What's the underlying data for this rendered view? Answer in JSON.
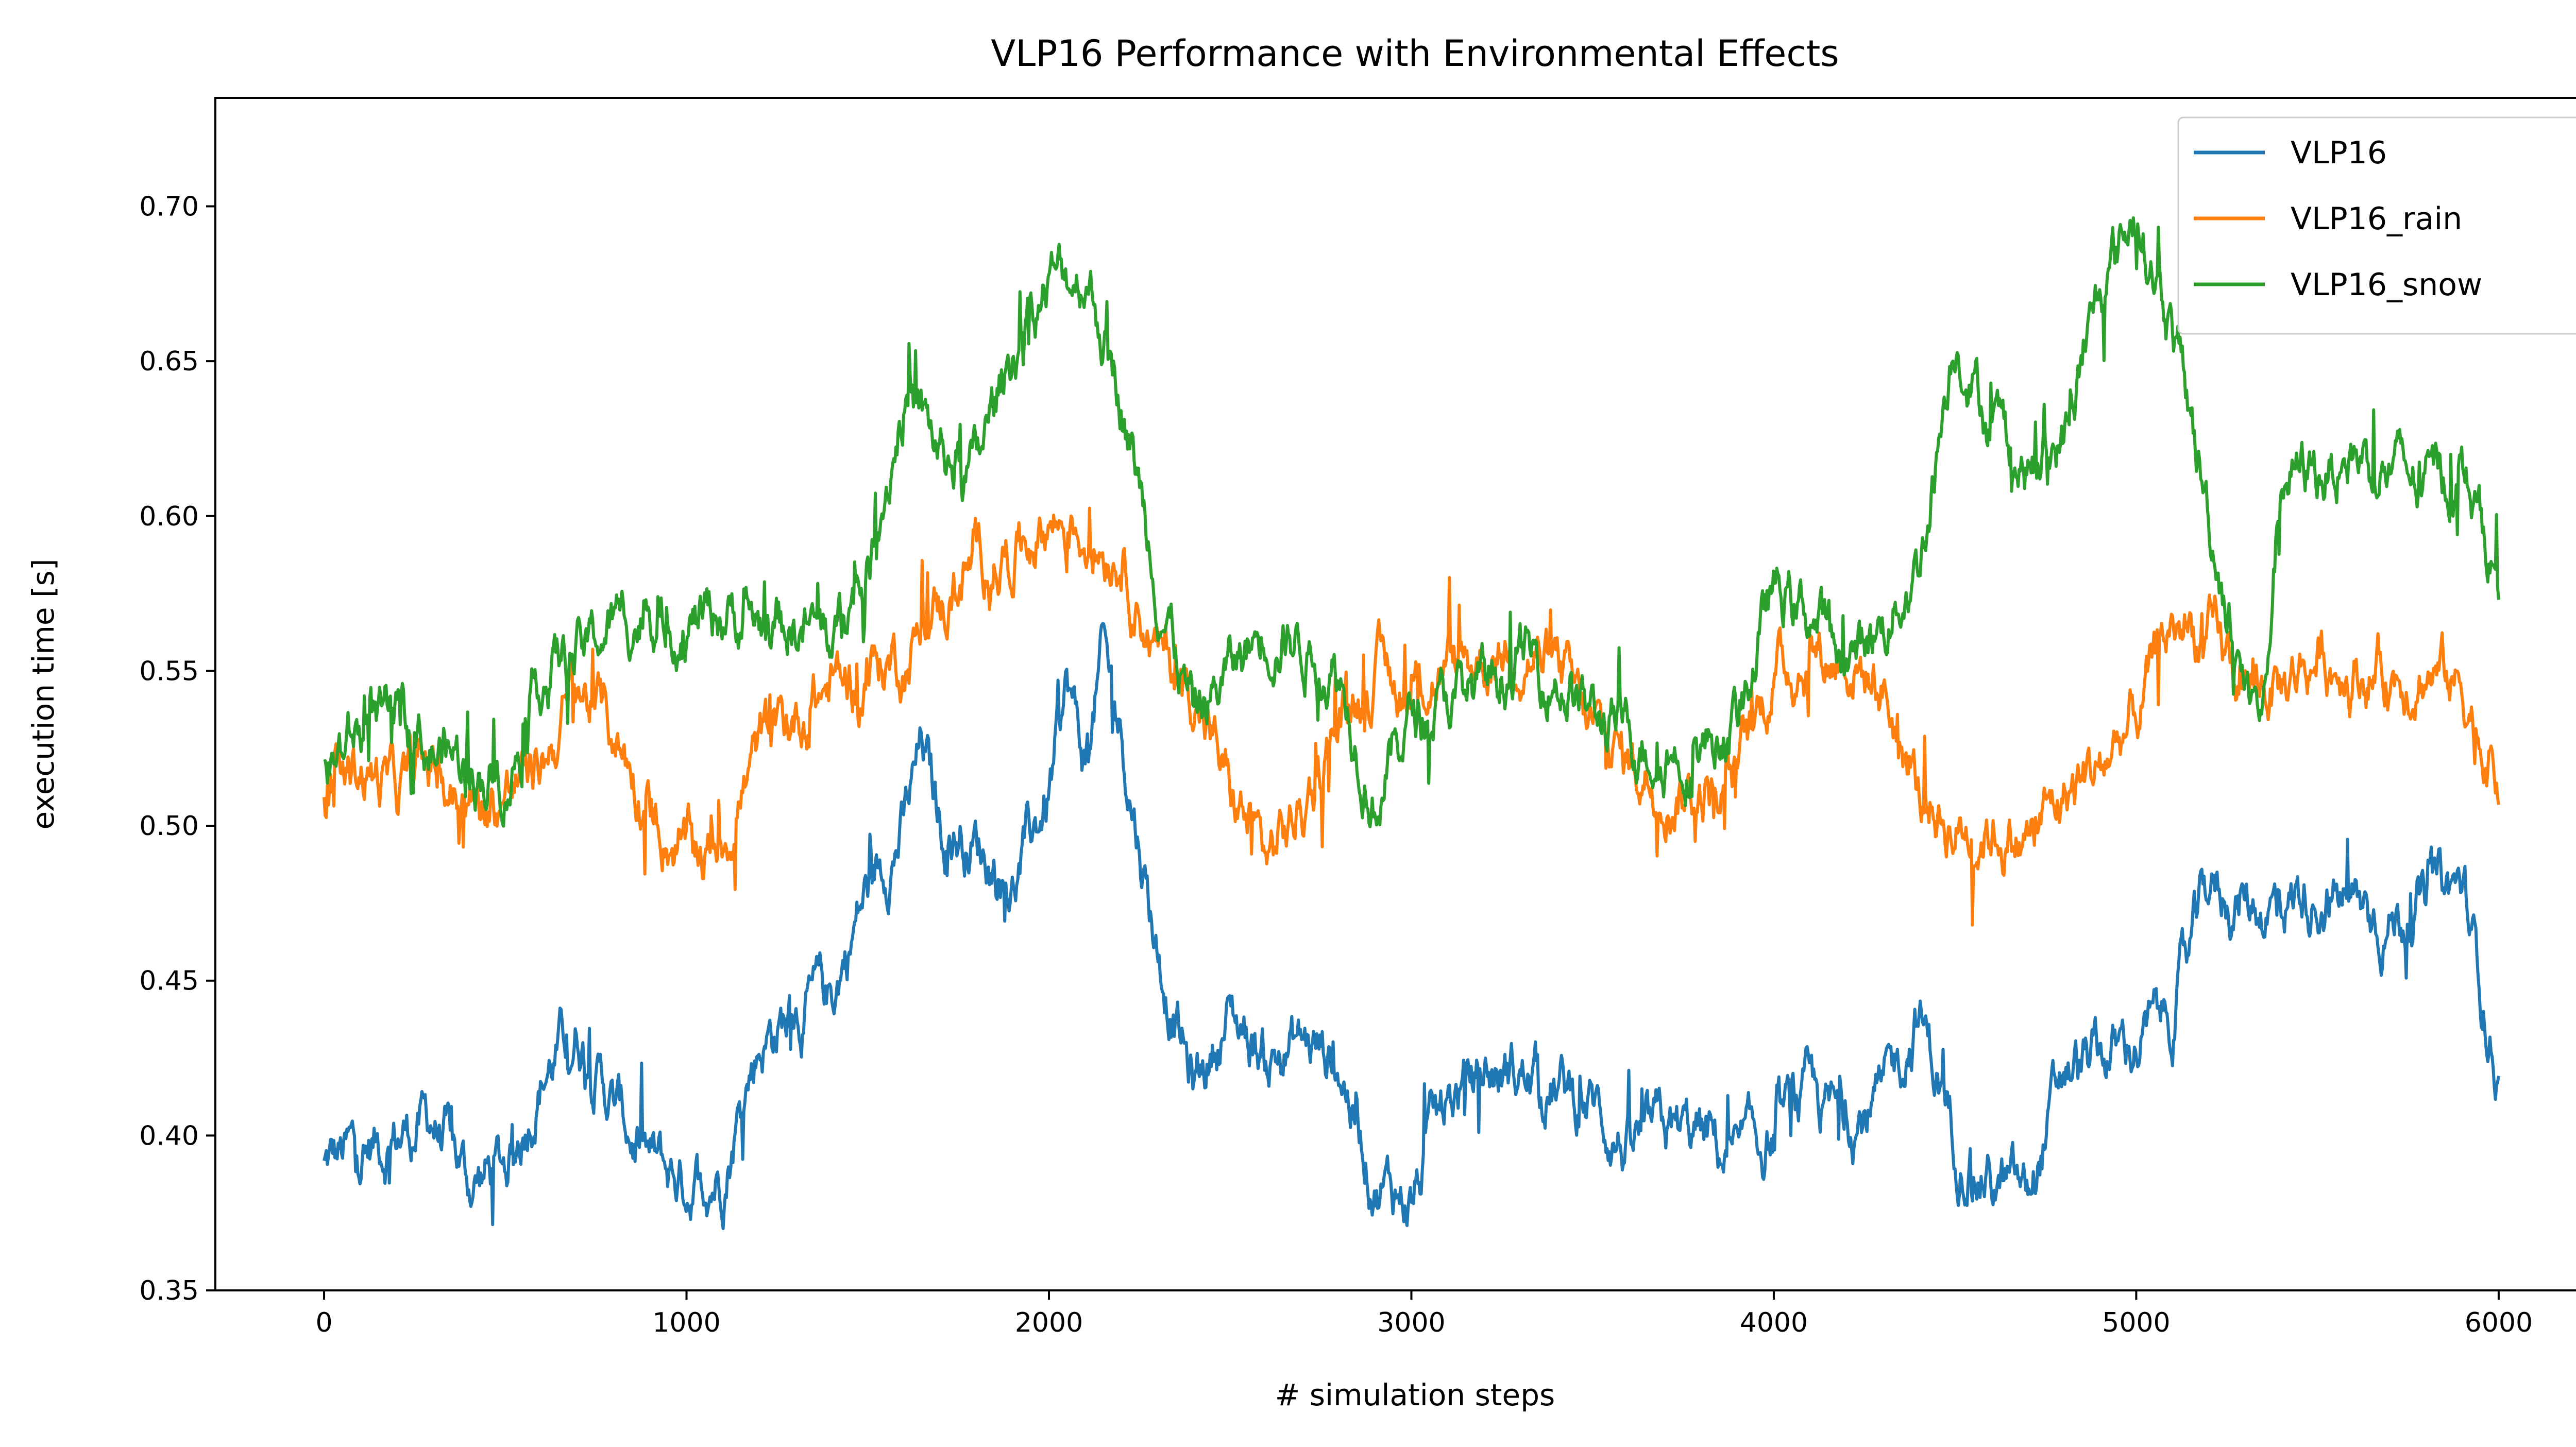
{
  "chart_data": {
    "type": "line",
    "title": "VLP16 Performance with Environmental Effects",
    "xlabel": "# simulation steps",
    "ylabel": "execution time [s]",
    "xlim": [
      -300,
      6320
    ],
    "ylim": [
      0.35,
      0.735
    ],
    "xticks": [
      0,
      1000,
      2000,
      3000,
      4000,
      5000,
      6000
    ],
    "xtick_labels": [
      "0",
      "1000",
      "2000",
      "3000",
      "4000",
      "5000",
      "6000"
    ],
    "yticks": [
      0.35,
      0.4,
      0.45,
      0.5,
      0.55,
      0.6,
      0.65,
      0.7
    ],
    "ytick_labels": [
      "0.35",
      "0.40",
      "0.45",
      "0.50",
      "0.55",
      "0.60",
      "0.65",
      "0.70"
    ],
    "grid": false,
    "legend_position": "top-right",
    "series": [
      {
        "name": "VLP16",
        "color": "#1f77b4",
        "x": [
          0,
          100,
          200,
          300,
          400,
          500,
          600,
          700,
          800,
          900,
          1000,
          1100,
          1200,
          1300,
          1400,
          1500,
          1600,
          1650,
          1700,
          1800,
          1900,
          2000,
          2050,
          2100,
          2150,
          2200,
          2300,
          2400,
          2500,
          2600,
          2700,
          2800,
          2900,
          3000,
          3100,
          3200,
          3300,
          3400,
          3500,
          3600,
          3700,
          3800,
          3900,
          4000,
          4100,
          4200,
          4300,
          4400,
          4500,
          4600,
          4700,
          4800,
          4900,
          5000,
          5100,
          5200,
          5300,
          5400,
          5500,
          5600,
          5700,
          5800,
          5900,
          6000
        ],
        "y": [
          0.39,
          0.395,
          0.4,
          0.405,
          0.385,
          0.39,
          0.42,
          0.435,
          0.41,
          0.39,
          0.385,
          0.39,
          0.43,
          0.44,
          0.445,
          0.48,
          0.5,
          0.525,
          0.5,
          0.495,
          0.48,
          0.51,
          0.545,
          0.52,
          0.555,
          0.53,
          0.46,
          0.415,
          0.44,
          0.425,
          0.43,
          0.425,
          0.385,
          0.38,
          0.41,
          0.42,
          0.42,
          0.415,
          0.41,
          0.395,
          0.4,
          0.4,
          0.39,
          0.4,
          0.41,
          0.405,
          0.41,
          0.44,
          0.4,
          0.385,
          0.38,
          0.42,
          0.425,
          0.43,
          0.44,
          0.48,
          0.475,
          0.475,
          0.48,
          0.475,
          0.47,
          0.475,
          0.48,
          0.42
        ]
      },
      {
        "name": "VLP16_rain",
        "color": "#ff7f0e",
        "x": [
          0,
          100,
          200,
          300,
          400,
          500,
          600,
          700,
          800,
          900,
          1000,
          1100,
          1200,
          1300,
          1400,
          1500,
          1600,
          1700,
          1800,
          1900,
          2000,
          2100,
          2200,
          2300,
          2400,
          2500,
          2600,
          2700,
          2800,
          2900,
          3000,
          3100,
          3200,
          3300,
          3400,
          3500,
          3600,
          3700,
          3800,
          3900,
          4000,
          4100,
          4200,
          4300,
          4400,
          4500,
          4600,
          4700,
          4800,
          4900,
          5000,
          5100,
          5200,
          5300,
          5400,
          5500,
          5600,
          5700,
          5800,
          5900,
          6000
        ],
        "y": [
          0.505,
          0.52,
          0.51,
          0.52,
          0.505,
          0.51,
          0.52,
          0.545,
          0.53,
          0.505,
          0.49,
          0.495,
          0.525,
          0.535,
          0.545,
          0.55,
          0.555,
          0.57,
          0.585,
          0.59,
          0.6,
          0.595,
          0.59,
          0.555,
          0.545,
          0.51,
          0.49,
          0.505,
          0.535,
          0.55,
          0.545,
          0.55,
          0.555,
          0.56,
          0.55,
          0.53,
          0.52,
          0.515,
          0.51,
          0.515,
          0.55,
          0.555,
          0.555,
          0.545,
          0.51,
          0.5,
          0.5,
          0.495,
          0.51,
          0.52,
          0.535,
          0.565,
          0.56,
          0.545,
          0.545,
          0.555,
          0.55,
          0.55,
          0.55,
          0.545,
          0.515
        ]
      },
      {
        "name": "VLP16_snow",
        "color": "#2ca02c",
        "x": [
          0,
          100,
          200,
          300,
          400,
          500,
          600,
          700,
          800,
          900,
          1000,
          1100,
          1200,
          1300,
          1400,
          1500,
          1600,
          1700,
          1800,
          1900,
          2000,
          2100,
          2200,
          2300,
          2400,
          2500,
          2600,
          2700,
          2800,
          2900,
          3000,
          3100,
          3200,
          3300,
          3400,
          3500,
          3600,
          3700,
          3800,
          3900,
          4000,
          4100,
          4200,
          4300,
          4400,
          4500,
          4600,
          4700,
          4800,
          4900,
          5000,
          5100,
          5200,
          5300,
          5350,
          5400,
          5500,
          5600,
          5700,
          5800,
          5900,
          6000
        ],
        "y": [
          0.515,
          0.53,
          0.53,
          0.525,
          0.52,
          0.515,
          0.55,
          0.555,
          0.565,
          0.57,
          0.565,
          0.57,
          0.565,
          0.565,
          0.56,
          0.58,
          0.64,
          0.62,
          0.615,
          0.655,
          0.675,
          0.68,
          0.64,
          0.58,
          0.535,
          0.55,
          0.565,
          0.56,
          0.55,
          0.51,
          0.535,
          0.54,
          0.545,
          0.555,
          0.55,
          0.535,
          0.53,
          0.525,
          0.525,
          0.535,
          0.575,
          0.57,
          0.55,
          0.565,
          0.585,
          0.66,
          0.63,
          0.615,
          0.625,
          0.67,
          0.7,
          0.66,
          0.6,
          0.545,
          0.535,
          0.615,
          0.615,
          0.62,
          0.615,
          0.61,
          0.615,
          0.58
        ]
      }
    ]
  }
}
